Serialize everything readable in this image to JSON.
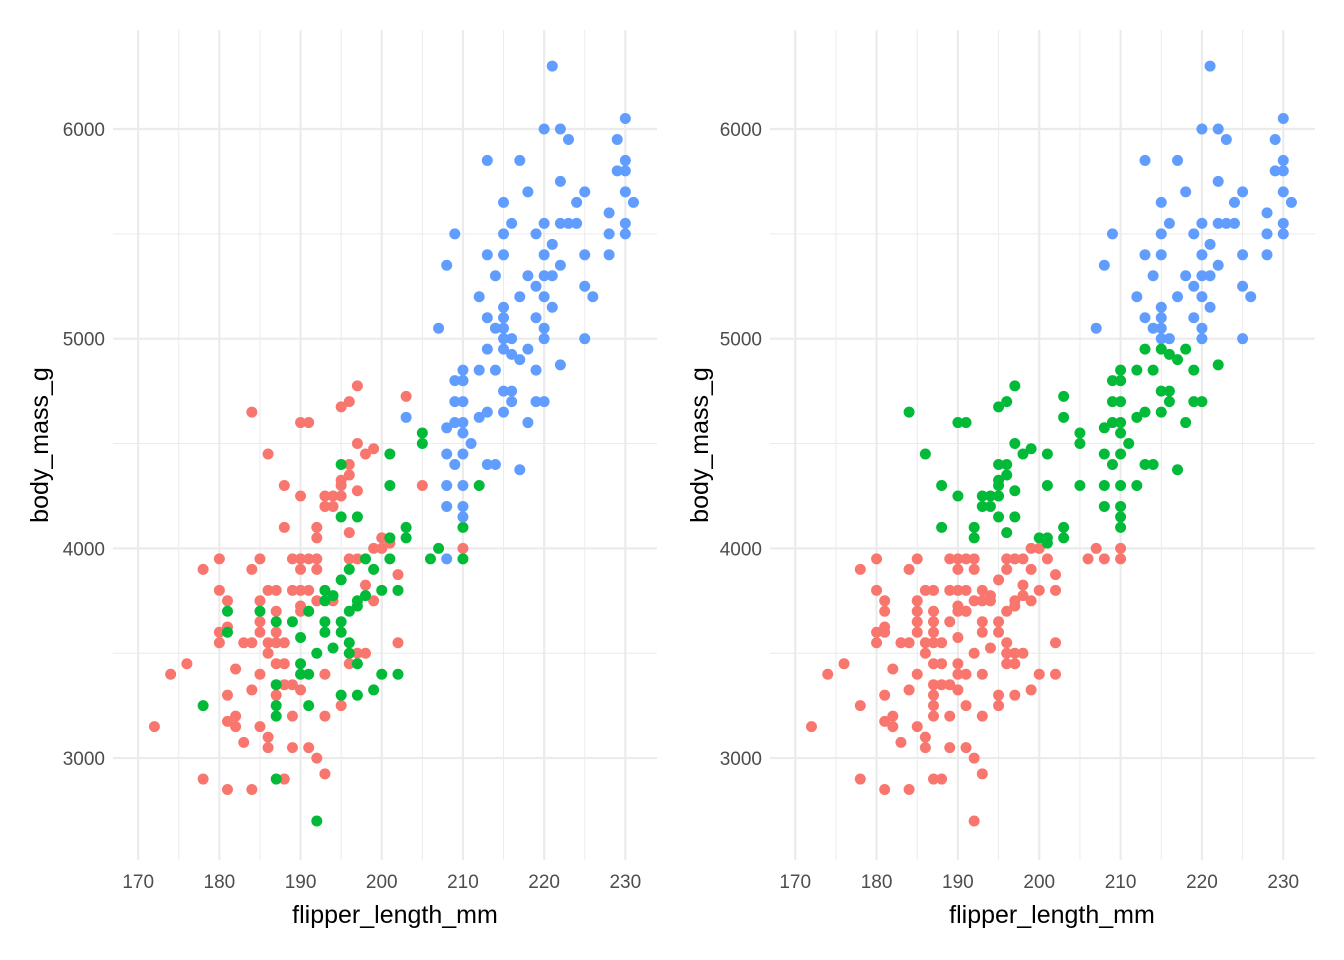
{
  "chart_data": [
    {
      "type": "scatter",
      "panel": "left",
      "coloring": "species_group",
      "xlabel": "flipper_length_mm",
      "ylabel": "body_mass_g",
      "xlim": [
        166.9,
        233.9
      ],
      "ylim": [
        2514,
        6472
      ],
      "xticks": [
        "170",
        "180",
        "190",
        "200",
        "210",
        "220",
        "230"
      ],
      "yticks": [
        "3000",
        "4000",
        "5000",
        "6000"
      ],
      "grid": true,
      "legend": "none"
    },
    {
      "type": "scatter",
      "panel": "right",
      "coloring": "cluster",
      "xlabel": "flipper_length_mm",
      "ylabel": "body_mass_g",
      "xlim": [
        166.9,
        233.9
      ],
      "ylim": [
        2514,
        6472
      ],
      "xticks": [
        "170",
        "180",
        "190",
        "200",
        "210",
        "220",
        "230"
      ],
      "yticks": [
        "3000",
        "4000",
        "5000",
        "6000"
      ],
      "grid": true,
      "legend": "none"
    }
  ],
  "palette": [
    "#F8766D",
    "#00BA38",
    "#619CFF"
  ],
  "points_format": "[flipper_length_mm, body_mass_g, cluster_index]; group index = position in groups array",
  "groups": [
    [
      [
        172,
        3150,
        0
      ],
      [
        174,
        3400,
        0
      ],
      [
        176,
        3450,
        0
      ],
      [
        178,
        3900,
        0
      ],
      [
        180,
        3950,
        0
      ],
      [
        180,
        3800,
        0
      ],
      [
        181,
        3750,
        0
      ],
      [
        180,
        3600,
        0
      ],
      [
        180,
        3550,
        0
      ],
      [
        181,
        3625,
        0
      ],
      [
        178,
        2900,
        0
      ],
      [
        181,
        2850,
        0
      ],
      [
        184,
        2850,
        0
      ],
      [
        181,
        3300,
        0
      ],
      [
        181,
        3175,
        0
      ],
      [
        182,
        3200,
        0
      ],
      [
        182,
        3150,
        0
      ],
      [
        182,
        3425,
        0
      ],
      [
        183,
        3550,
        0
      ],
      [
        184,
        3550,
        0
      ],
      [
        183,
        3075,
        0
      ],
      [
        184,
        3325,
        0
      ],
      [
        184,
        3900,
        0
      ],
      [
        184,
        4650,
        1
      ],
      [
        185,
        3950,
        0
      ],
      [
        185,
        3750,
        0
      ],
      [
        185,
        3600,
        0
      ],
      [
        185,
        3650,
        0
      ],
      [
        185,
        3400,
        0
      ],
      [
        185,
        3150,
        0
      ],
      [
        186,
        3050,
        0
      ],
      [
        186,
        3100,
        0
      ],
      [
        186,
        4450,
        1
      ],
      [
        186,
        3800,
        0
      ],
      [
        186,
        3550,
        0
      ],
      [
        186,
        3500,
        0
      ],
      [
        187,
        3800,
        0
      ],
      [
        187,
        3700,
        0
      ],
      [
        187,
        3600,
        0
      ],
      [
        187,
        3550,
        0
      ],
      [
        187,
        3450,
        0
      ],
      [
        187,
        3300,
        0
      ],
      [
        188,
        2900,
        0
      ],
      [
        188,
        4300,
        1
      ],
      [
        188,
        4100,
        1
      ],
      [
        188,
        3550,
        0
      ],
      [
        188,
        3450,
        0
      ],
      [
        188,
        3350,
        0
      ],
      [
        189,
        3950,
        0
      ],
      [
        189,
        3800,
        0
      ],
      [
        189,
        3200,
        0
      ],
      [
        189,
        3350,
        0
      ],
      [
        189,
        3050,
        0
      ],
      [
        190,
        4600,
        1
      ],
      [
        191,
        4600,
        1
      ],
      [
        190,
        4250,
        1
      ],
      [
        190,
        3950,
        0
      ],
      [
        190,
        3900,
        0
      ],
      [
        190,
        3800,
        0
      ],
      [
        190,
        3725,
        0
      ],
      [
        190,
        3700,
        0
      ],
      [
        190,
        3325,
        0
      ],
      [
        191,
        3050,
        0
      ],
      [
        191,
        3950,
        0
      ],
      [
        191,
        3800,
        0
      ],
      [
        191,
        3700,
        0
      ],
      [
        192,
        4100,
        1
      ],
      [
        192,
        3950,
        0
      ],
      [
        192,
        3900,
        0
      ],
      [
        192,
        4050,
        1
      ],
      [
        192,
        3000,
        0
      ],
      [
        192,
        3750,
        0
      ],
      [
        193,
        4250,
        1
      ],
      [
        193,
        4200,
        1
      ],
      [
        193,
        3200,
        0
      ],
      [
        193,
        2925,
        0
      ],
      [
        193,
        3400,
        0
      ],
      [
        194,
        4250,
        1
      ],
      [
        194,
        4200,
        1
      ],
      [
        194,
        3750,
        0
      ],
      [
        195,
        4325,
        1
      ],
      [
        195,
        4300,
        1
      ],
      [
        195,
        4250,
        1
      ],
      [
        195,
        4675,
        1
      ],
      [
        195,
        3250,
        0
      ],
      [
        196,
        4700,
        1
      ],
      [
        196,
        4400,
        1
      ],
      [
        196,
        4350,
        1
      ],
      [
        196,
        4075,
        1
      ],
      [
        196,
        3950,
        0
      ],
      [
        196,
        3450,
        0
      ],
      [
        197,
        4775,
        1
      ],
      [
        197,
        4500,
        1
      ],
      [
        197,
        4275,
        1
      ],
      [
        197,
        3950,
        0
      ],
      [
        197,
        3500,
        0
      ],
      [
        198,
        4450,
        1
      ],
      [
        198,
        3825,
        0
      ],
      [
        198,
        3500,
        0
      ],
      [
        199,
        4475,
        1
      ],
      [
        199,
        4000,
        0
      ],
      [
        199,
        3750,
        0
      ],
      [
        200,
        4050,
        1
      ],
      [
        200,
        4000,
        0
      ],
      [
        201,
        4025,
        1
      ],
      [
        202,
        3875,
        0
      ],
      [
        202,
        3550,
        0
      ],
      [
        203,
        4725,
        1
      ],
      [
        205,
        4300,
        1
      ],
      [
        210,
        4000,
        0
      ]
    ],
    [
      [
        178,
        3250,
        0
      ],
      [
        181,
        3700,
        0
      ],
      [
        181,
        3600,
        0
      ],
      [
        185,
        3700,
        0
      ],
      [
        187,
        3350,
        0
      ],
      [
        187,
        3250,
        0
      ],
      [
        187,
        3200,
        0
      ],
      [
        187,
        2900,
        0
      ],
      [
        187,
        3650,
        0
      ],
      [
        189,
        3650,
        0
      ],
      [
        190,
        3575,
        0
      ],
      [
        190,
        3450,
        0
      ],
      [
        190,
        3400,
        0
      ],
      [
        191,
        3400,
        0
      ],
      [
        191,
        3250,
        0
      ],
      [
        191,
        3700,
        0
      ],
      [
        192,
        2700,
        0
      ],
      [
        192,
        3500,
        0
      ],
      [
        193,
        3800,
        0
      ],
      [
        193,
        3750,
        0
      ],
      [
        193,
        3650,
        0
      ],
      [
        193,
        3600,
        0
      ],
      [
        194,
        3775,
        0
      ],
      [
        194,
        3525,
        0
      ],
      [
        195,
        3850,
        0
      ],
      [
        195,
        3650,
        0
      ],
      [
        195,
        3600,
        0
      ],
      [
        195,
        3300,
        0
      ],
      [
        195,
        4400,
        1
      ],
      [
        195,
        4150,
        1
      ],
      [
        196,
        3900,
        0
      ],
      [
        196,
        3700,
        0
      ],
      [
        196,
        3550,
        0
      ],
      [
        196,
        3500,
        0
      ],
      [
        197,
        3750,
        0
      ],
      [
        197,
        3725,
        0
      ],
      [
        197,
        3450,
        0
      ],
      [
        197,
        3300,
        0
      ],
      [
        197,
        4150,
        1
      ],
      [
        198,
        3950,
        0
      ],
      [
        198,
        3775,
        0
      ],
      [
        199,
        3900,
        0
      ],
      [
        199,
        3325,
        0
      ],
      [
        200,
        3800,
        0
      ],
      [
        200,
        3400,
        0
      ],
      [
        201,
        4450,
        1
      ],
      [
        201,
        4300,
        1
      ],
      [
        201,
        4050,
        1
      ],
      [
        201,
        3950,
        0
      ],
      [
        202,
        3800,
        0
      ],
      [
        202,
        3400,
        0
      ],
      [
        203,
        4100,
        1
      ],
      [
        203,
        4050,
        1
      ],
      [
        205,
        4550,
        1
      ],
      [
        205,
        4500,
        1
      ],
      [
        206,
        3950,
        0
      ],
      [
        207,
        4000,
        0
      ],
      [
        210,
        4800,
        1
      ],
      [
        210,
        4100,
        1
      ],
      [
        210,
        3950,
        0
      ],
      [
        212,
        4300,
        1
      ]
    ],
    [
      [
        221,
        6300,
        2
      ],
      [
        220,
        6000,
        2
      ],
      [
        222,
        6000,
        2
      ],
      [
        223,
        5950,
        2
      ],
      [
        230,
        6050,
        2
      ],
      [
        229,
        5950,
        2
      ],
      [
        230,
        5850,
        2
      ],
      [
        230,
        5800,
        2
      ],
      [
        229,
        5800,
        2
      ],
      [
        230,
        5700,
        2
      ],
      [
        231,
        5650,
        2
      ],
      [
        230,
        5550,
        2
      ],
      [
        230,
        5500,
        2
      ],
      [
        228,
        5600,
        2
      ],
      [
        228,
        5500,
        2
      ],
      [
        228,
        5400,
        2
      ],
      [
        225,
        5700,
        2
      ],
      [
        224,
        5650,
        2
      ],
      [
        222,
        5750,
        2
      ],
      [
        218,
        5700,
        2
      ],
      [
        217,
        5850,
        2
      ],
      [
        213,
        5850,
        2
      ],
      [
        219,
        5500,
        2
      ],
      [
        220,
        5550,
        2
      ],
      [
        221,
        5450,
        2
      ],
      [
        222,
        5550,
        2
      ],
      [
        223,
        5550,
        2
      ],
      [
        224,
        5550,
        2
      ],
      [
        225,
        5400,
        2
      ],
      [
        226,
        5200,
        2
      ],
      [
        225,
        5250,
        2
      ],
      [
        222,
        5350,
        2
      ],
      [
        220,
        5400,
        2
      ],
      [
        220,
        5300,
        2
      ],
      [
        221,
        5300,
        2
      ],
      [
        218,
        5300,
        2
      ],
      [
        219,
        5250,
        2
      ],
      [
        220,
        5200,
        2
      ],
      [
        219,
        5100,
        2
      ],
      [
        217,
        5200,
        2
      ],
      [
        215,
        5500,
        2
      ],
      [
        215,
        5650,
        2
      ],
      [
        216,
        5550,
        2
      ],
      [
        213,
        5400,
        2
      ],
      [
        215,
        5400,
        2
      ],
      [
        214,
        5300,
        2
      ],
      [
        212,
        5200,
        2
      ],
      [
        209,
        5500,
        2
      ],
      [
        208,
        5350,
        2
      ],
      [
        207,
        5050,
        2
      ],
      [
        215,
        5150,
        2
      ],
      [
        215,
        5100,
        2
      ],
      [
        213,
        5100,
        2
      ],
      [
        215,
        5050,
        2
      ],
      [
        215,
        5000,
        2
      ],
      [
        216,
        5000,
        2
      ],
      [
        214,
        5050,
        2
      ],
      [
        213,
        4950,
        1
      ],
      [
        215,
        4950,
        1
      ],
      [
        216,
        4925,
        1
      ],
      [
        217,
        4900,
        1
      ],
      [
        218,
        4950,
        1
      ],
      [
        220,
        5050,
        2
      ],
      [
        220,
        5000,
        2
      ],
      [
        221,
        5150,
        2
      ],
      [
        225,
        5000,
        2
      ],
      [
        222,
        4875,
        1
      ],
      [
        219,
        4850,
        1
      ],
      [
        219,
        4700,
        1
      ],
      [
        220,
        4700,
        1
      ],
      [
        218,
        4600,
        1
      ],
      [
        217,
        4375,
        1
      ],
      [
        216,
        4700,
        1
      ],
      [
        215,
        4750,
        1
      ],
      [
        216,
        4750,
        1
      ],
      [
        214,
        4850,
        1
      ],
      [
        212,
        4850,
        1
      ],
      [
        210,
        4850,
        1
      ],
      [
        210,
        4800,
        1
      ],
      [
        209,
        4800,
        1
      ],
      [
        210,
        4700,
        1
      ],
      [
        209,
        4700,
        1
      ],
      [
        215,
        4650,
        1
      ],
      [
        213,
        4650,
        1
      ],
      [
        212,
        4625,
        1
      ],
      [
        210,
        4600,
        1
      ],
      [
        209,
        4600,
        1
      ],
      [
        208,
        4575,
        1
      ],
      [
        210,
        4550,
        1
      ],
      [
        211,
        4500,
        1
      ],
      [
        208,
        4450,
        1
      ],
      [
        210,
        4450,
        1
      ],
      [
        209,
        4400,
        1
      ],
      [
        213,
        4400,
        1
      ],
      [
        214,
        4400,
        1
      ],
      [
        208,
        4300,
        1
      ],
      [
        210,
        4300,
        1
      ],
      [
        208,
        4200,
        1
      ],
      [
        210,
        4200,
        1
      ],
      [
        210,
        4150,
        1
      ],
      [
        208,
        3950,
        0
      ],
      [
        203,
        4625,
        1
      ]
    ]
  ]
}
